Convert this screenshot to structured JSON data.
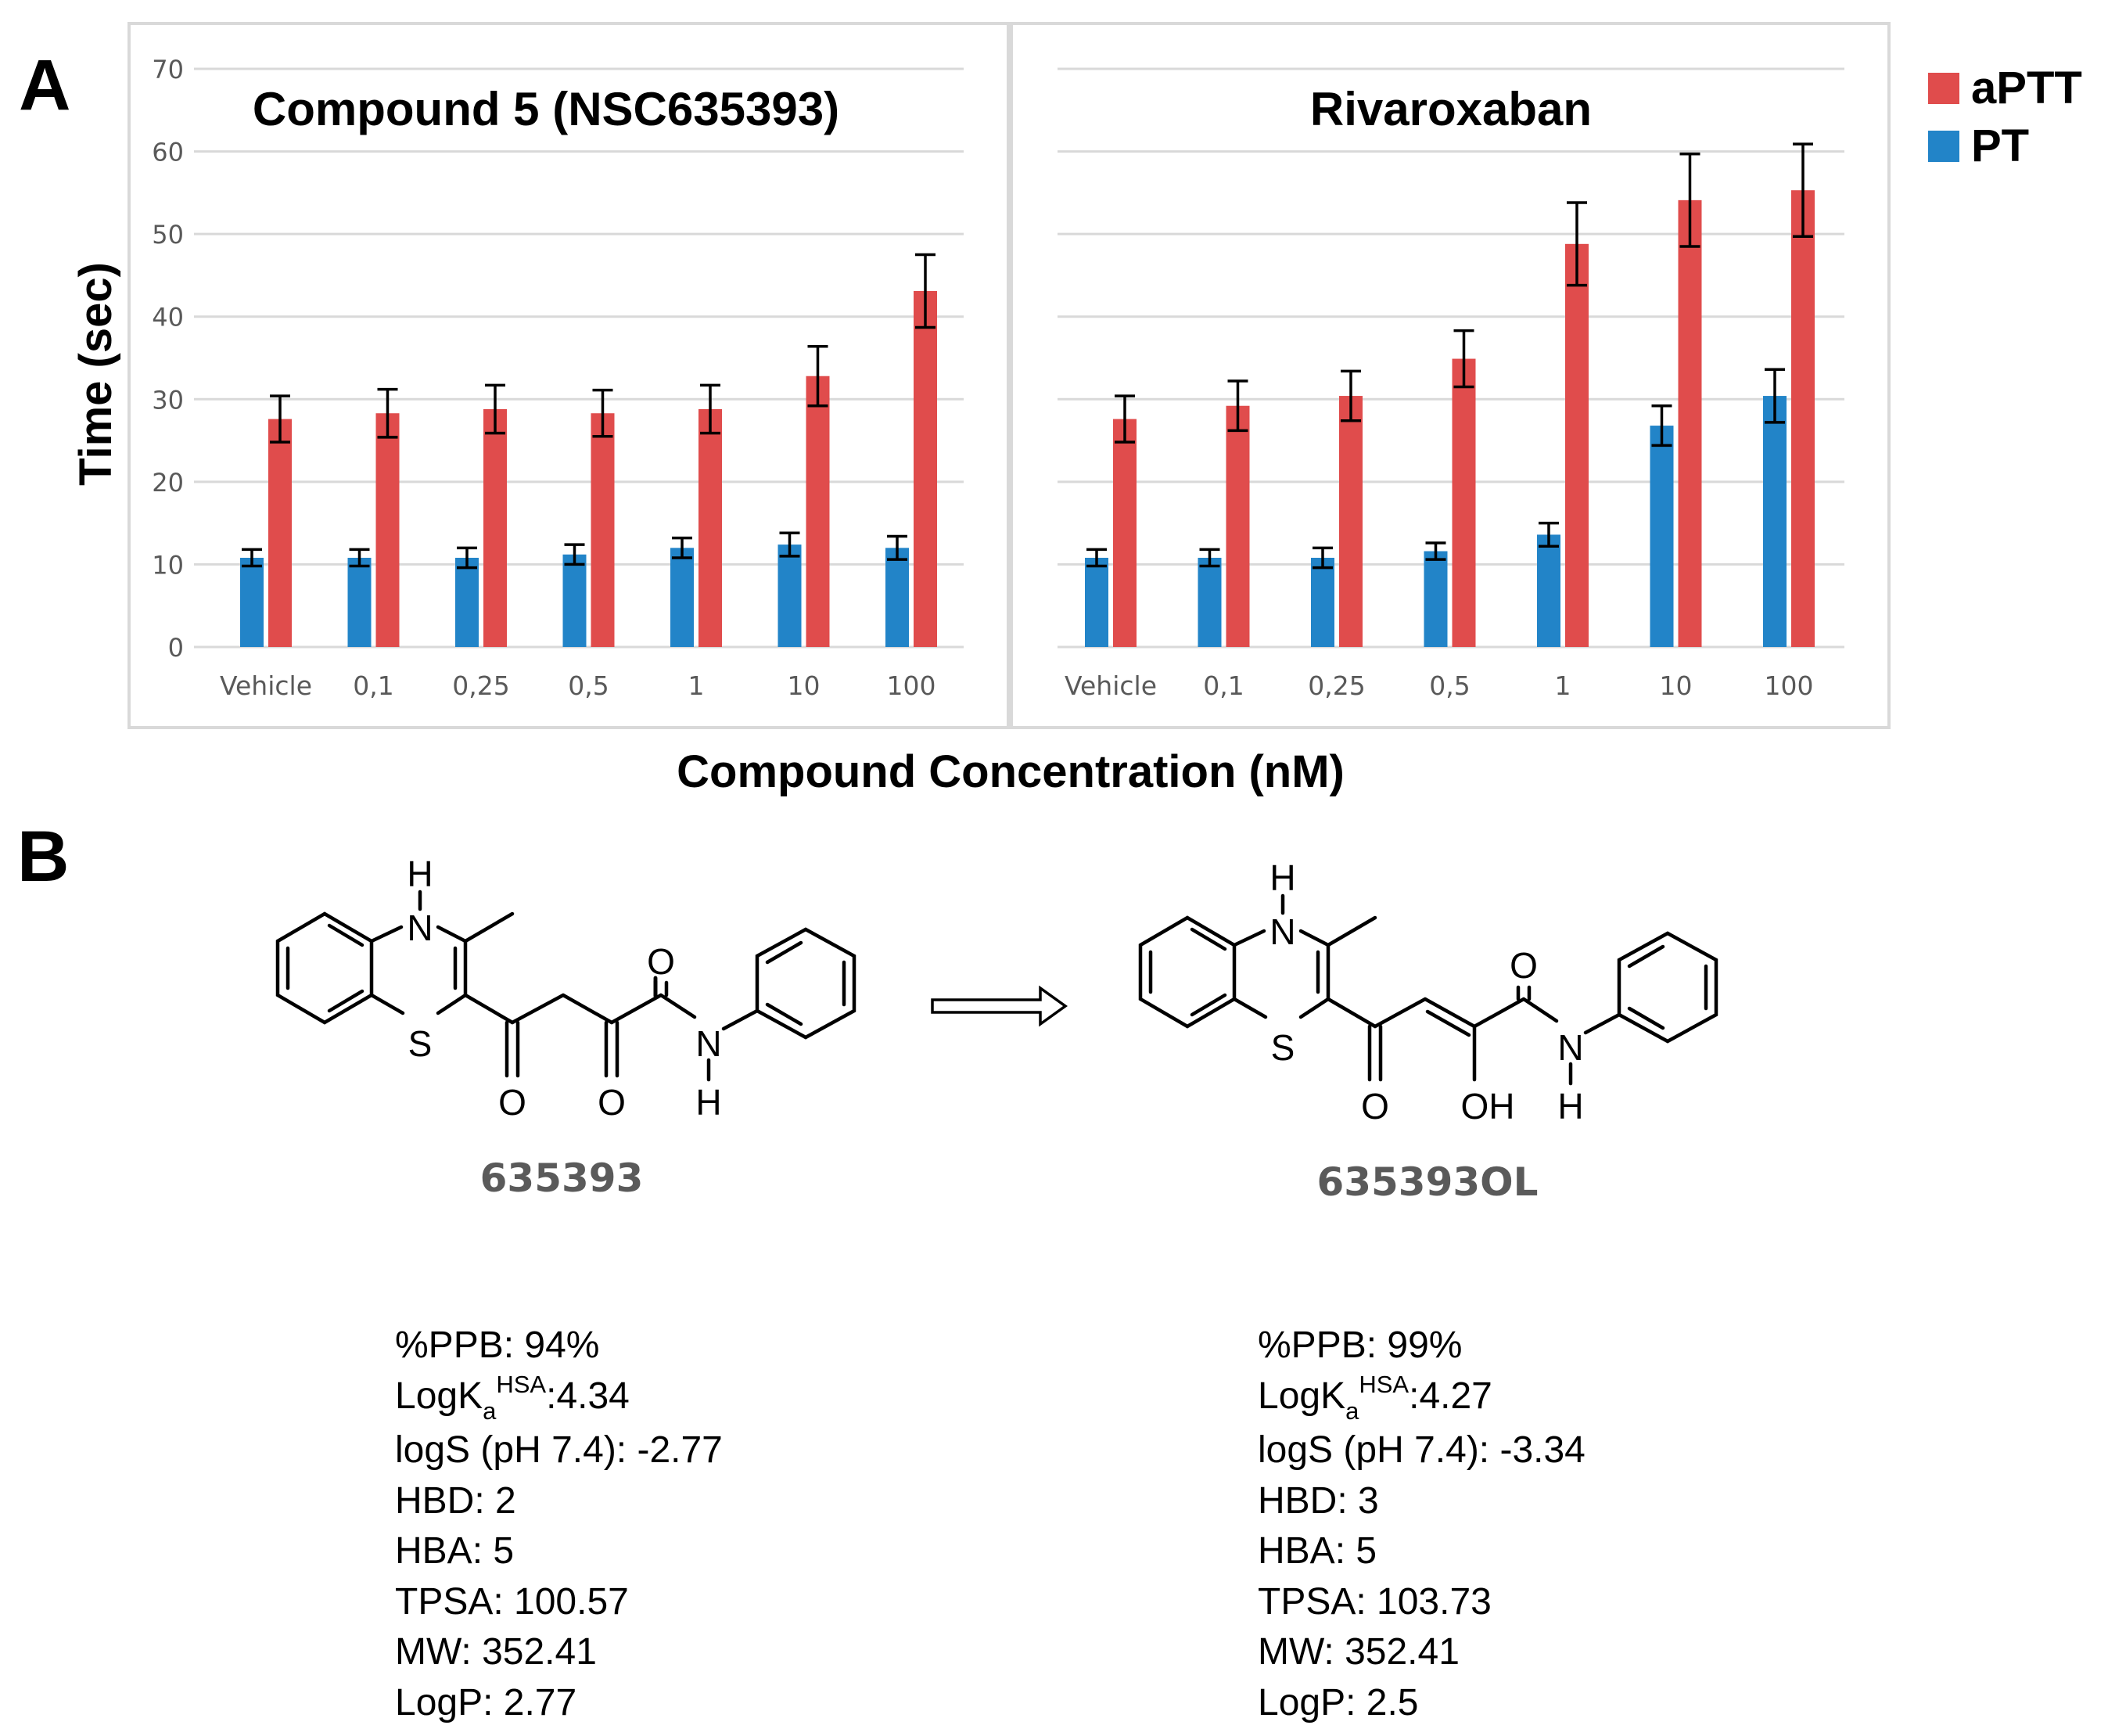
{
  "panels": {
    "a": "A",
    "b": "B"
  },
  "colors": {
    "aptt": "#e04c4c",
    "pt": "#2284c8",
    "grid": "#d9d9d9",
    "frame": "#d9d9d9",
    "tick_text": "#595959"
  },
  "chart_data": [
    {
      "type": "bar",
      "title": "Compound 5 (NSC635393)",
      "categories": [
        "Vehicle",
        "0,1",
        "0,25",
        "0,5",
        "1",
        "10",
        "100"
      ],
      "ylim": [
        0,
        70
      ],
      "yticks": [
        "0",
        "10",
        "20",
        "30",
        "40",
        "50",
        "60",
        "70"
      ],
      "ylabel": "Time (sec)",
      "xlabel": "Compound Concentration (nM)",
      "series": [
        {
          "name": "PT",
          "values": [
            10.8,
            10.8,
            10.8,
            11.2,
            12.0,
            12.4,
            12.0
          ],
          "errors": [
            1.0,
            1.0,
            1.2,
            1.2,
            1.2,
            1.4,
            1.4
          ]
        },
        {
          "name": "aPTT",
          "values": [
            27.6,
            28.3,
            28.8,
            28.3,
            28.8,
            32.8,
            43.1
          ],
          "errors": [
            2.8,
            2.9,
            2.9,
            2.8,
            2.9,
            3.6,
            4.4
          ]
        }
      ]
    },
    {
      "type": "bar",
      "title": "Rivaroxaban",
      "categories": [
        "Vehicle",
        "0,1",
        "0,25",
        "0,5",
        "1",
        "10",
        "100"
      ],
      "ylim": [
        0,
        70
      ],
      "series": [
        {
          "name": "PT",
          "values": [
            10.8,
            10.8,
            10.8,
            11.6,
            13.6,
            26.8,
            30.4
          ],
          "errors": [
            1.0,
            1.0,
            1.2,
            1.0,
            1.4,
            2.4,
            3.2
          ]
        },
        {
          "name": "aPTT",
          "values": [
            27.6,
            29.2,
            30.4,
            34.9,
            48.8,
            54.1,
            55.3
          ],
          "errors": [
            2.8,
            3.0,
            3.0,
            3.4,
            5.0,
            5.6,
            5.6
          ]
        }
      ]
    }
  ],
  "legend": [
    "aPTT",
    "PT"
  ],
  "compounds": [
    {
      "id": "635393",
      "atoms": {
        "h_top": "H",
        "n_top": "N",
        "s": "S",
        "o_amide": "O",
        "n_amide": "N",
        "h_amide": "H",
        "o_ketone1": "O",
        "o_ketone2": "O"
      },
      "properties": {
        "ppb": "%PPB: 94%",
        "logka_prefix": "LogK",
        "logka_sub": "a",
        "logka_sup": "HSA",
        "logka_value": ":4.34",
        "logs": "logS (pH 7.4): -2.77",
        "hbd": "HBD: 2",
        "hba": "HBA: 5",
        "tpsa": "TPSA: 100.57",
        "mw": "MW: 352.41",
        "logp": "LogP: 2.77"
      }
    },
    {
      "id": "635393OL",
      "atoms": {
        "h_top": "H",
        "n_top": "N",
        "s": "S",
        "o_amide": "O",
        "n_amide": "N",
        "h_amide": "H",
        "o_ketone": "O",
        "oh": "OH"
      },
      "properties": {
        "ppb": "%PPB: 99%",
        "logka_prefix": "LogK",
        "logka_sub": "a",
        "logka_sup": "HSA",
        "logka_value": ":4.27",
        "logs": "logS (pH 7.4): -3.34",
        "hbd": "HBD: 3",
        "hba": "HBA: 5",
        "tpsa": "TPSA: 103.73",
        "mw": "MW: 352.41",
        "logp": "LogP: 2.5"
      }
    }
  ]
}
